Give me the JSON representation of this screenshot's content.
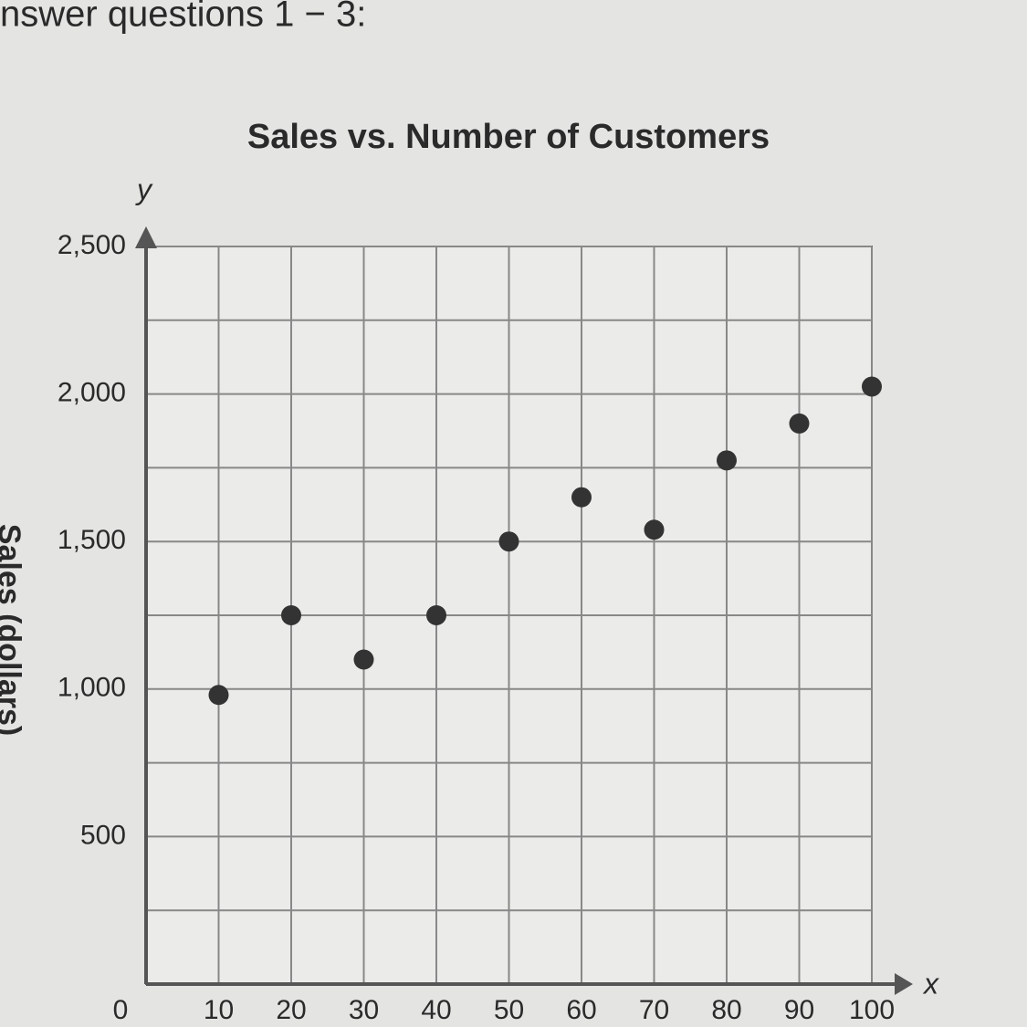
{
  "header": {
    "text": "nswer questions 1 − 3:"
  },
  "chart_data": {
    "type": "scatter",
    "title": "Sales vs. Number of Customers",
    "x_axis_label": "x",
    "y_axis_label": "y",
    "y_axis_title": "Sales (dollars)",
    "x": [
      10,
      20,
      30,
      40,
      50,
      60,
      70,
      80,
      90,
      100
    ],
    "values": [
      980,
      1250,
      1100,
      1250,
      1500,
      1650,
      1540,
      1775,
      1900,
      2025
    ],
    "color": "#333333",
    "xlim": [
      0,
      100
    ],
    "xticks": [
      0,
      10,
      20,
      30,
      40,
      50,
      60,
      70,
      80,
      90,
      100
    ],
    "ylim": [
      0,
      2500
    ],
    "yticks": [
      {
        "value": 0,
        "label": null
      },
      {
        "value": 250,
        "label": null
      },
      500,
      {
        "value": 750,
        "label": null
      },
      {
        "value": 1000,
        "label": "1,000"
      },
      {
        "value": 1250,
        "label": null
      },
      {
        "value": 1500,
        "label": "1,500"
      },
      {
        "value": 1750,
        "label": null
      },
      {
        "value": 2000,
        "label": "2,000"
      },
      {
        "value": 2250,
        "label": null
      },
      {
        "value": 2500,
        "label": "2,500"
      }
    ],
    "grid": true
  }
}
